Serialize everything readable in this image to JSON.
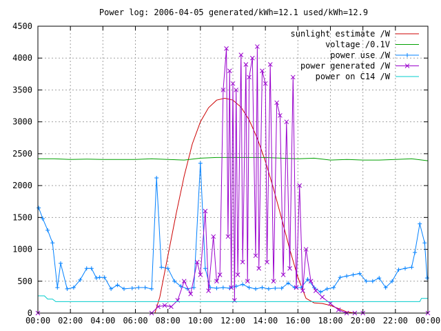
{
  "chart_data": {
    "type": "line",
    "title": "Power log: 2006-04-05 generated/kWh=12.1 used/kWh=12.9",
    "xlabel": "",
    "ylabel": "",
    "xlim": [
      0,
      24
    ],
    "ylim": [
      0,
      4500
    ],
    "grid": true,
    "legend_position": "top-right",
    "x_ticks": [
      0,
      2,
      4,
      6,
      8,
      10,
      12,
      14,
      16,
      18,
      20,
      22,
      24
    ],
    "x_tick_labels": [
      "00:00",
      "02:00",
      "04:00",
      "06:00",
      "08:00",
      "10:00",
      "12:00",
      "14:00",
      "16:00",
      "18:00",
      "20:00",
      "22:00",
      "00:00"
    ],
    "y_ticks": [
      0,
      500,
      1000,
      1500,
      2000,
      2500,
      3000,
      3500,
      4000,
      4500
    ],
    "y_tick_labels": [
      "0",
      "500",
      "1000",
      "1500",
      "2000",
      "2500",
      "3000",
      "3500",
      "4000",
      "4500"
    ],
    "series": [
      {
        "name": "sunlight estimate /W",
        "color": "#cc0000",
        "marker": "none",
        "x": [
          0,
          7.2,
          7.5,
          8.0,
          8.5,
          9.0,
          9.5,
          10.0,
          10.5,
          11.0,
          11.5,
          12.0,
          12.5,
          13.0,
          13.5,
          14.0,
          14.5,
          15.0,
          15.5,
          16.0,
          16.5,
          17.0,
          17.5,
          18.0,
          18.5,
          19.0,
          19.5,
          24
        ],
        "y": [
          0,
          0,
          250,
          900,
          1550,
          2150,
          2650,
          3000,
          3220,
          3340,
          3370,
          3340,
          3230,
          3030,
          2740,
          2380,
          1950,
          1480,
          1000,
          560,
          230,
          160,
          150,
          120,
          70,
          20,
          0,
          0
        ]
      },
      {
        "name": "voltage /0.1V",
        "color": "#00a000",
        "marker": "none",
        "x": [
          0,
          1,
          2,
          3,
          4,
          5,
          6,
          7,
          8,
          9,
          10,
          11,
          12,
          13,
          14,
          15,
          16,
          17,
          18,
          19,
          20,
          21,
          22,
          23,
          24
        ],
        "y": [
          2420,
          2420,
          2410,
          2415,
          2410,
          2410,
          2410,
          2420,
          2410,
          2400,
          2430,
          2440,
          2440,
          2440,
          2440,
          2430,
          2420,
          2430,
          2400,
          2410,
          2400,
          2400,
          2410,
          2420,
          2390
        ]
      },
      {
        "name": "power use /W",
        "color": "#0080ff",
        "marker": "plus",
        "x": [
          0.05,
          0.3,
          0.6,
          0.9,
          1.2,
          1.4,
          1.8,
          2.2,
          2.6,
          3.0,
          3.3,
          3.6,
          3.8,
          4.1,
          4.5,
          4.9,
          5.3,
          5.8,
          6.2,
          6.6,
          7.0,
          7.3,
          7.6,
          8.0,
          8.4,
          8.8,
          9.2,
          9.6,
          10.0,
          10.3,
          10.6,
          11.0,
          11.4,
          11.8,
          12.2,
          12.6,
          13.0,
          13.4,
          13.8,
          14.2,
          14.6,
          15.0,
          15.4,
          15.8,
          16.2,
          16.6,
          17.0,
          17.4,
          17.8,
          18.2,
          18.6,
          19.0,
          19.4,
          19.8,
          20.2,
          20.6,
          21.0,
          21.4,
          21.8,
          22.2,
          22.6,
          23.0,
          23.2,
          23.5,
          23.8,
          23.95
        ],
        "y": [
          1650,
          1480,
          1300,
          1100,
          400,
          780,
          380,
          400,
          520,
          700,
          700,
          550,
          560,
          560,
          380,
          440,
          380,
          390,
          400,
          400,
          380,
          2120,
          720,
          700,
          500,
          420,
          380,
          400,
          2350,
          700,
          400,
          390,
          400,
          390,
          420,
          450,
          400,
          380,
          400,
          380,
          390,
          390,
          470,
          400,
          400,
          530,
          400,
          330,
          380,
          400,
          560,
          580,
          600,
          620,
          500,
          500,
          550,
          400,
          500,
          680,
          700,
          720,
          950,
          1400,
          1100,
          550
        ]
      },
      {
        "name": "power generated /W",
        "color": "#9900cc",
        "marker": "x",
        "x": [
          0,
          7.0,
          7.4,
          7.8,
          8.2,
          8.6,
          9.0,
          9.4,
          9.8,
          10.0,
          10.3,
          10.5,
          10.8,
          11.0,
          11.2,
          11.4,
          11.6,
          11.7,
          11.8,
          11.9,
          12.0,
          12.1,
          12.2,
          12.3,
          12.5,
          12.6,
          12.8,
          12.9,
          13.0,
          13.2,
          13.4,
          13.5,
          13.6,
          13.8,
          14.0,
          14.1,
          14.3,
          14.5,
          14.7,
          14.9,
          15.1,
          15.3,
          15.5,
          15.7,
          15.9,
          16.1,
          16.3,
          16.5,
          16.8,
          17.1,
          17.5,
          18.0,
          18.5,
          19.0,
          19.5,
          20.0,
          24
        ],
        "y": [
          0,
          0,
          100,
          120,
          100,
          200,
          500,
          300,
          800,
          600,
          1600,
          350,
          1200,
          500,
          600,
          3500,
          4150,
          1200,
          3800,
          400,
          3600,
          200,
          3500,
          600,
          4050,
          800,
          3900,
          500,
          3700,
          4000,
          900,
          4180,
          700,
          3800,
          3600,
          800,
          3900,
          500,
          3300,
          3100,
          600,
          3000,
          700,
          3700,
          400,
          2000,
          350,
          1000,
          500,
          350,
          250,
          150,
          50,
          0,
          0,
          0,
          0
        ]
      },
      {
        "name": "power on C14 /W",
        "color": "#00cccc",
        "marker": "none",
        "x": [
          0,
          0.4,
          0.6,
          0.9,
          1.1,
          1.5,
          23.5,
          23.6,
          24
        ],
        "y": [
          270,
          270,
          220,
          220,
          180,
          180,
          180,
          230,
          230
        ]
      }
    ]
  }
}
